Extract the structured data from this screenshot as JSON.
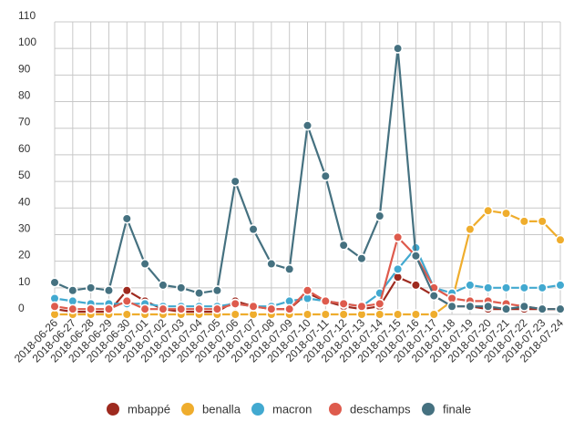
{
  "chart_data": {
    "type": "line",
    "title": "",
    "xlabel": "",
    "ylabel": "",
    "ylim": [
      0,
      110
    ],
    "yticks": [
      0,
      10,
      20,
      30,
      40,
      50,
      60,
      70,
      80,
      90,
      100,
      110
    ],
    "grid": true,
    "legend_position": "bottom",
    "categories": [
      "2018-06-26",
      "2018-06-27",
      "2018-06-28",
      "2018-06-29",
      "2018-06-30",
      "2018-07-01",
      "2018-07-02",
      "2018-07-03",
      "2018-07-04",
      "2018-07-05",
      "2018-07-06",
      "2018-07-07",
      "2018-07-08",
      "2018-07-09",
      "2018-07-10",
      "2018-07-11",
      "2018-07-12",
      "2018-07-13",
      "2018-07-14",
      "2018-07-15",
      "2018-07-16",
      "2018-07-17",
      "2018-07-18",
      "2018-07-19",
      "2018-07-20",
      "2018-07-21",
      "2018-07-22",
      "2018-07-23",
      "2018-07-24"
    ],
    "series": [
      {
        "name": "mbappé",
        "color": "#9e2a1f",
        "values": [
          2,
          1,
          1,
          1,
          9,
          5,
          2,
          1,
          1,
          1,
          5,
          3,
          2,
          2,
          8,
          5,
          3,
          2,
          3,
          14,
          11,
          7,
          3,
          3,
          2,
          2,
          2,
          2,
          2
        ]
      },
      {
        "name": "benalla",
        "color": "#efad2d",
        "values": [
          0,
          0,
          0,
          0,
          0,
          0,
          0,
          0,
          0,
          0,
          0,
          0,
          0,
          0,
          0,
          0,
          0,
          0,
          0,
          0,
          0,
          0,
          5,
          32,
          39,
          38,
          35,
          35,
          28
        ]
      },
      {
        "name": "macron",
        "color": "#42a9d0",
        "values": [
          6,
          5,
          4,
          4,
          4,
          4,
          3,
          3,
          3,
          3,
          4,
          3,
          3,
          5,
          6,
          5,
          4,
          3,
          8,
          17,
          25,
          10,
          8,
          11,
          10,
          10,
          10,
          10,
          11
        ]
      },
      {
        "name": "deschamps",
        "color": "#de5b4d",
        "values": [
          3,
          2,
          2,
          2,
          5,
          2,
          2,
          2,
          2,
          2,
          4,
          3,
          2,
          2,
          9,
          5,
          4,
          3,
          4,
          29,
          22,
          10,
          6,
          5,
          5,
          4,
          3,
          2,
          2
        ]
      },
      {
        "name": "finale",
        "color": "#457180",
        "values": [
          12,
          9,
          10,
          9,
          36,
          19,
          11,
          10,
          8,
          9,
          50,
          32,
          19,
          17,
          71,
          52,
          26,
          21,
          37,
          100,
          22,
          7,
          3,
          3,
          3,
          2,
          3,
          2,
          2
        ]
      }
    ]
  }
}
